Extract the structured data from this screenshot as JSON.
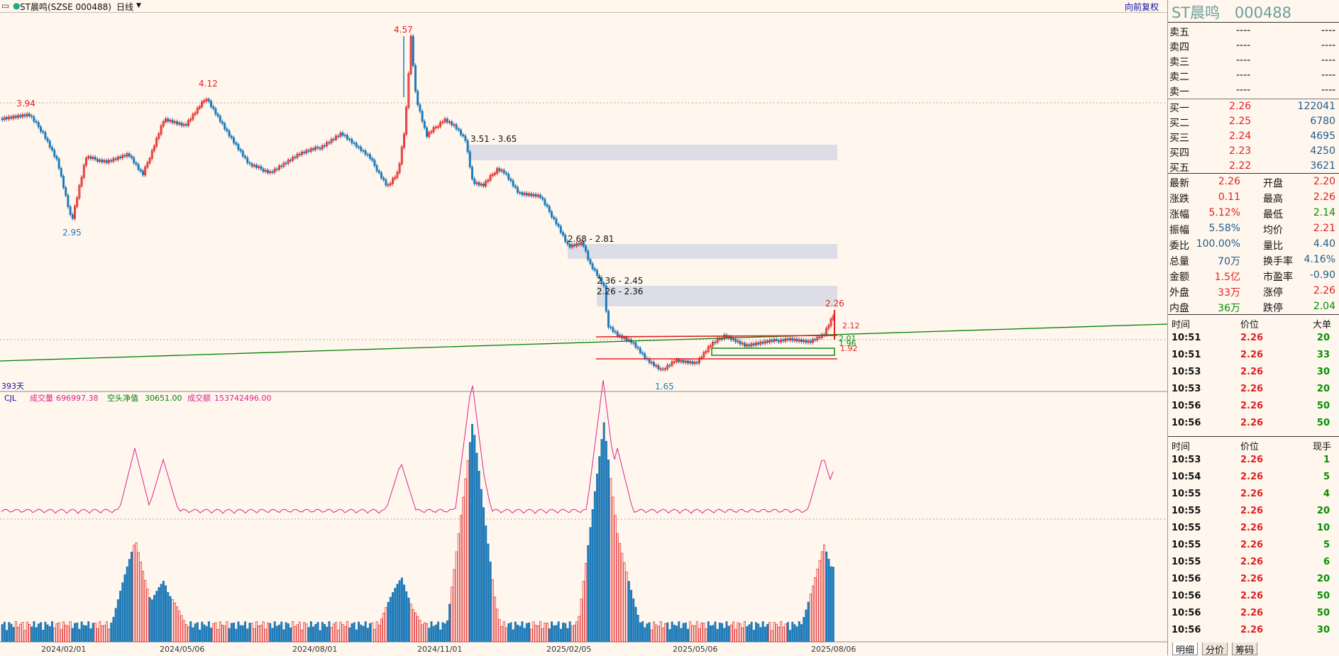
{
  "topbar": {
    "title": "ST晨鸣(SZSE 000488)",
    "period": "日线",
    "adjust": "向前复权"
  },
  "price_labels": {
    "high1": "3.94",
    "high2": "4.12",
    "high3": "4.57",
    "low1": "2.95",
    "low2": "1.65",
    "last": "2.26",
    "z1": "3.51 - 3.65",
    "z2": "2.68 - 2.81",
    "z3": "2.36 - 2.45",
    "z4": "2.26 - 2.36",
    "lvl1": "2.12",
    "lvl2": "2.01",
    "lvl3": "1.96",
    "lvl4": "1.92",
    "days": "393天"
  },
  "indicator": {
    "name": "CJL",
    "vol_label": "成交量",
    "vol": "696997.38",
    "net_label": "空头净值",
    "net": "30651.00",
    "amt_label": "成交额",
    "amt": "153742496.00"
  },
  "xaxis": [
    "2024/02/01",
    "2024/05/06",
    "2024/08/01",
    "2024/11/01",
    "2025/02/05",
    "2025/05/06",
    "2025/08/06"
  ],
  "colors": {
    "up": "#e02020",
    "down": "#1f7ab8",
    "trend": "#008000",
    "zone": "#dcdde6",
    "ma": "#e0208a"
  },
  "side": {
    "name": "ST晨鸣",
    "code": "000488",
    "asks": [
      {
        "l": "卖五",
        "p": "----",
        "v": "----"
      },
      {
        "l": "卖四",
        "p": "----",
        "v": "----"
      },
      {
        "l": "卖三",
        "p": "----",
        "v": "----"
      },
      {
        "l": "卖二",
        "p": "----",
        "v": "----"
      },
      {
        "l": "卖一",
        "p": "----",
        "v": "----"
      }
    ],
    "bids": [
      {
        "l": "买一",
        "p": "2.26",
        "v": "122041"
      },
      {
        "l": "买二",
        "p": "2.25",
        "v": "6780"
      },
      {
        "l": "买三",
        "p": "2.24",
        "v": "4695"
      },
      {
        "l": "买四",
        "p": "2.23",
        "v": "4250"
      },
      {
        "l": "买五",
        "p": "2.22",
        "v": "3621"
      }
    ],
    "stats": [
      {
        "a": "最新",
        "av": "2.26",
        "ac": "red",
        "b": "开盘",
        "bv": "2.20",
        "bc": "red"
      },
      {
        "a": "涨跌",
        "av": "0.11",
        "ac": "red",
        "b": "最高",
        "bv": "2.26",
        "bc": "red"
      },
      {
        "a": "涨幅",
        "av": "5.12%",
        "ac": "red",
        "b": "最低",
        "bv": "2.14",
        "bc": "green"
      },
      {
        "a": "振幅",
        "av": "5.58%",
        "ac": "blue",
        "b": "均价",
        "bv": "2.21",
        "bc": "red"
      },
      {
        "a": "委比",
        "av": "100.00%",
        "ac": "blue",
        "b": "量比",
        "bv": "4.40",
        "bc": "blue"
      },
      {
        "a": "总量",
        "av": "70万",
        "ac": "blue",
        "b": "换手率",
        "bv": "4.16%",
        "bc": "blue"
      },
      {
        "a": "金额",
        "av": "1.5亿",
        "ac": "red",
        "b": "市盈率",
        "bv": "-0.90",
        "bc": "blue"
      },
      {
        "a": "外盘",
        "av": "33万",
        "ac": "red",
        "b": "涨停",
        "bv": "2.26",
        "bc": "red"
      },
      {
        "a": "内盘",
        "av": "36万",
        "ac": "green",
        "b": "跌停",
        "bv": "2.04",
        "bc": "green"
      }
    ],
    "big_header": {
      "t": "时间",
      "p": "价位",
      "v": "大单"
    },
    "big": [
      {
        "t": "10:51",
        "p": "2.26",
        "v": "20"
      },
      {
        "t": "10:51",
        "p": "2.26",
        "v": "33"
      },
      {
        "t": "10:53",
        "p": "2.26",
        "v": "30"
      },
      {
        "t": "10:53",
        "p": "2.26",
        "v": "20"
      },
      {
        "t": "10:56",
        "p": "2.26",
        "v": "50"
      },
      {
        "t": "10:56",
        "p": "2.26",
        "v": "50"
      }
    ],
    "tick_header": {
      "t": "时间",
      "p": "价位",
      "v": "现手"
    },
    "ticks": [
      {
        "t": "10:53",
        "p": "2.26",
        "v": "1"
      },
      {
        "t": "10:54",
        "p": "2.26",
        "v": "5"
      },
      {
        "t": "10:55",
        "p": "2.26",
        "v": "4"
      },
      {
        "t": "10:55",
        "p": "2.26",
        "v": "20"
      },
      {
        "t": "10:55",
        "p": "2.26",
        "v": "10"
      },
      {
        "t": "10:55",
        "p": "2.26",
        "v": "5"
      },
      {
        "t": "10:55",
        "p": "2.26",
        "v": "6"
      },
      {
        "t": "10:56",
        "p": "2.26",
        "v": "20"
      },
      {
        "t": "10:56",
        "p": "2.26",
        "v": "50"
      },
      {
        "t": "10:56",
        "p": "2.26",
        "v": "50"
      },
      {
        "t": "10:56",
        "p": "2.26",
        "v": "30"
      }
    ],
    "tabs": [
      "明细",
      "分价",
      "筹码"
    ]
  }
}
